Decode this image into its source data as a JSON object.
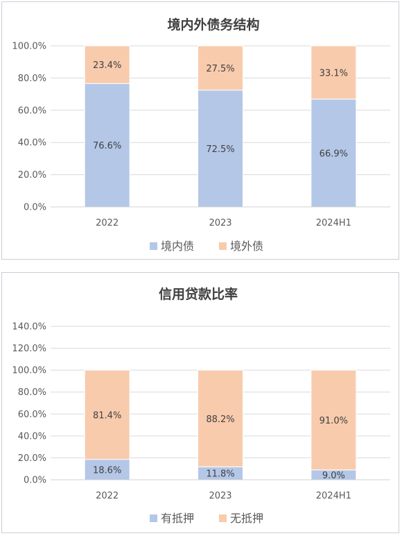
{
  "chart_data": [
    {
      "type": "bar",
      "stacked": true,
      "title": "境内外债务结构",
      "categories": [
        "2022",
        "2023",
        "2024H1"
      ],
      "series": [
        {
          "name": "境内债",
          "values": [
            76.6,
            72.5,
            66.9
          ],
          "labels": [
            "76.6%",
            "72.5%",
            "66.9%"
          ],
          "color": "#b4c7e7"
        },
        {
          "name": "境外债",
          "values": [
            23.4,
            27.5,
            33.1
          ],
          "labels": [
            "23.4%",
            "27.5%",
            "33.1%"
          ],
          "color": "#f8cbad"
        }
      ],
      "ylim": [
        0,
        100
      ],
      "yticks": [
        "0.0%",
        "20.0%",
        "40.0%",
        "60.0%",
        "80.0%",
        "100.0%"
      ],
      "grid": true,
      "legend_position": "bottom"
    },
    {
      "type": "bar",
      "stacked": true,
      "title": "信用贷款比率",
      "categories": [
        "2022",
        "2023",
        "2024H1"
      ],
      "series": [
        {
          "name": "有抵押",
          "values": [
            18.6,
            11.8,
            9.0
          ],
          "labels": [
            "18.6%",
            "11.8%",
            "9.0%"
          ],
          "color": "#b4c7e7"
        },
        {
          "name": "无抵押",
          "values": [
            81.4,
            88.2,
            91.0
          ],
          "labels": [
            "81.4%",
            "88.2%",
            "91.0%"
          ],
          "color": "#f8cbad"
        }
      ],
      "ylim": [
        0,
        140
      ],
      "yticks": [
        "0.0%",
        "20.0%",
        "40.0%",
        "60.0%",
        "80.0%",
        "100.0%",
        "120.0%",
        "140.0%"
      ],
      "grid": true,
      "legend_position": "bottom"
    }
  ]
}
